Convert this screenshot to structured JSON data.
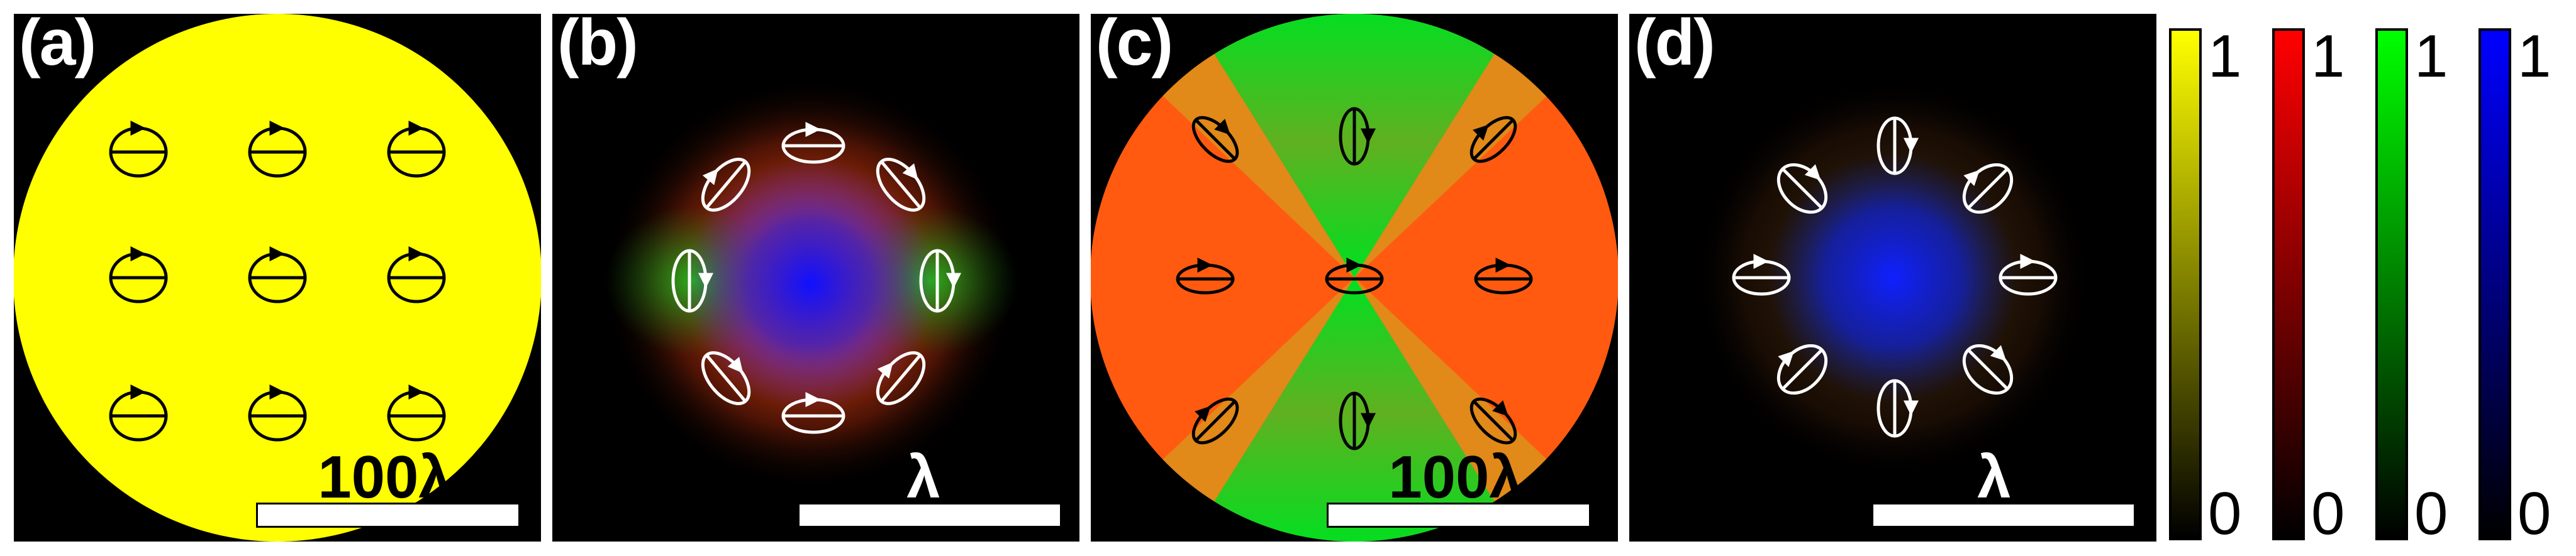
{
  "panels": [
    {
      "label": "(a)",
      "scale_label": "100λ",
      "scale_color": "#000000",
      "ellipse_color": "#000000"
    },
    {
      "label": "(b)",
      "scale_label": "λ",
      "scale_color": "#ffffff",
      "ellipse_color": "#ffffff"
    },
    {
      "label": "(c)",
      "scale_label": "100λ",
      "scale_color": "#000000",
      "ellipse_color": "#000000"
    },
    {
      "label": "(d)",
      "scale_label": "λ",
      "scale_color": "#ffffff",
      "ellipse_color": "#ffffff"
    }
  ],
  "colorbars": [
    {
      "color": "#ffff00",
      "max": "1",
      "min": "0"
    },
    {
      "color": "#ff0000",
      "max": "1",
      "min": "0"
    },
    {
      "color": "#00ff00",
      "max": "1",
      "min": "0"
    },
    {
      "color": "#0000ff",
      "max": "1",
      "min": "0"
    }
  ]
}
